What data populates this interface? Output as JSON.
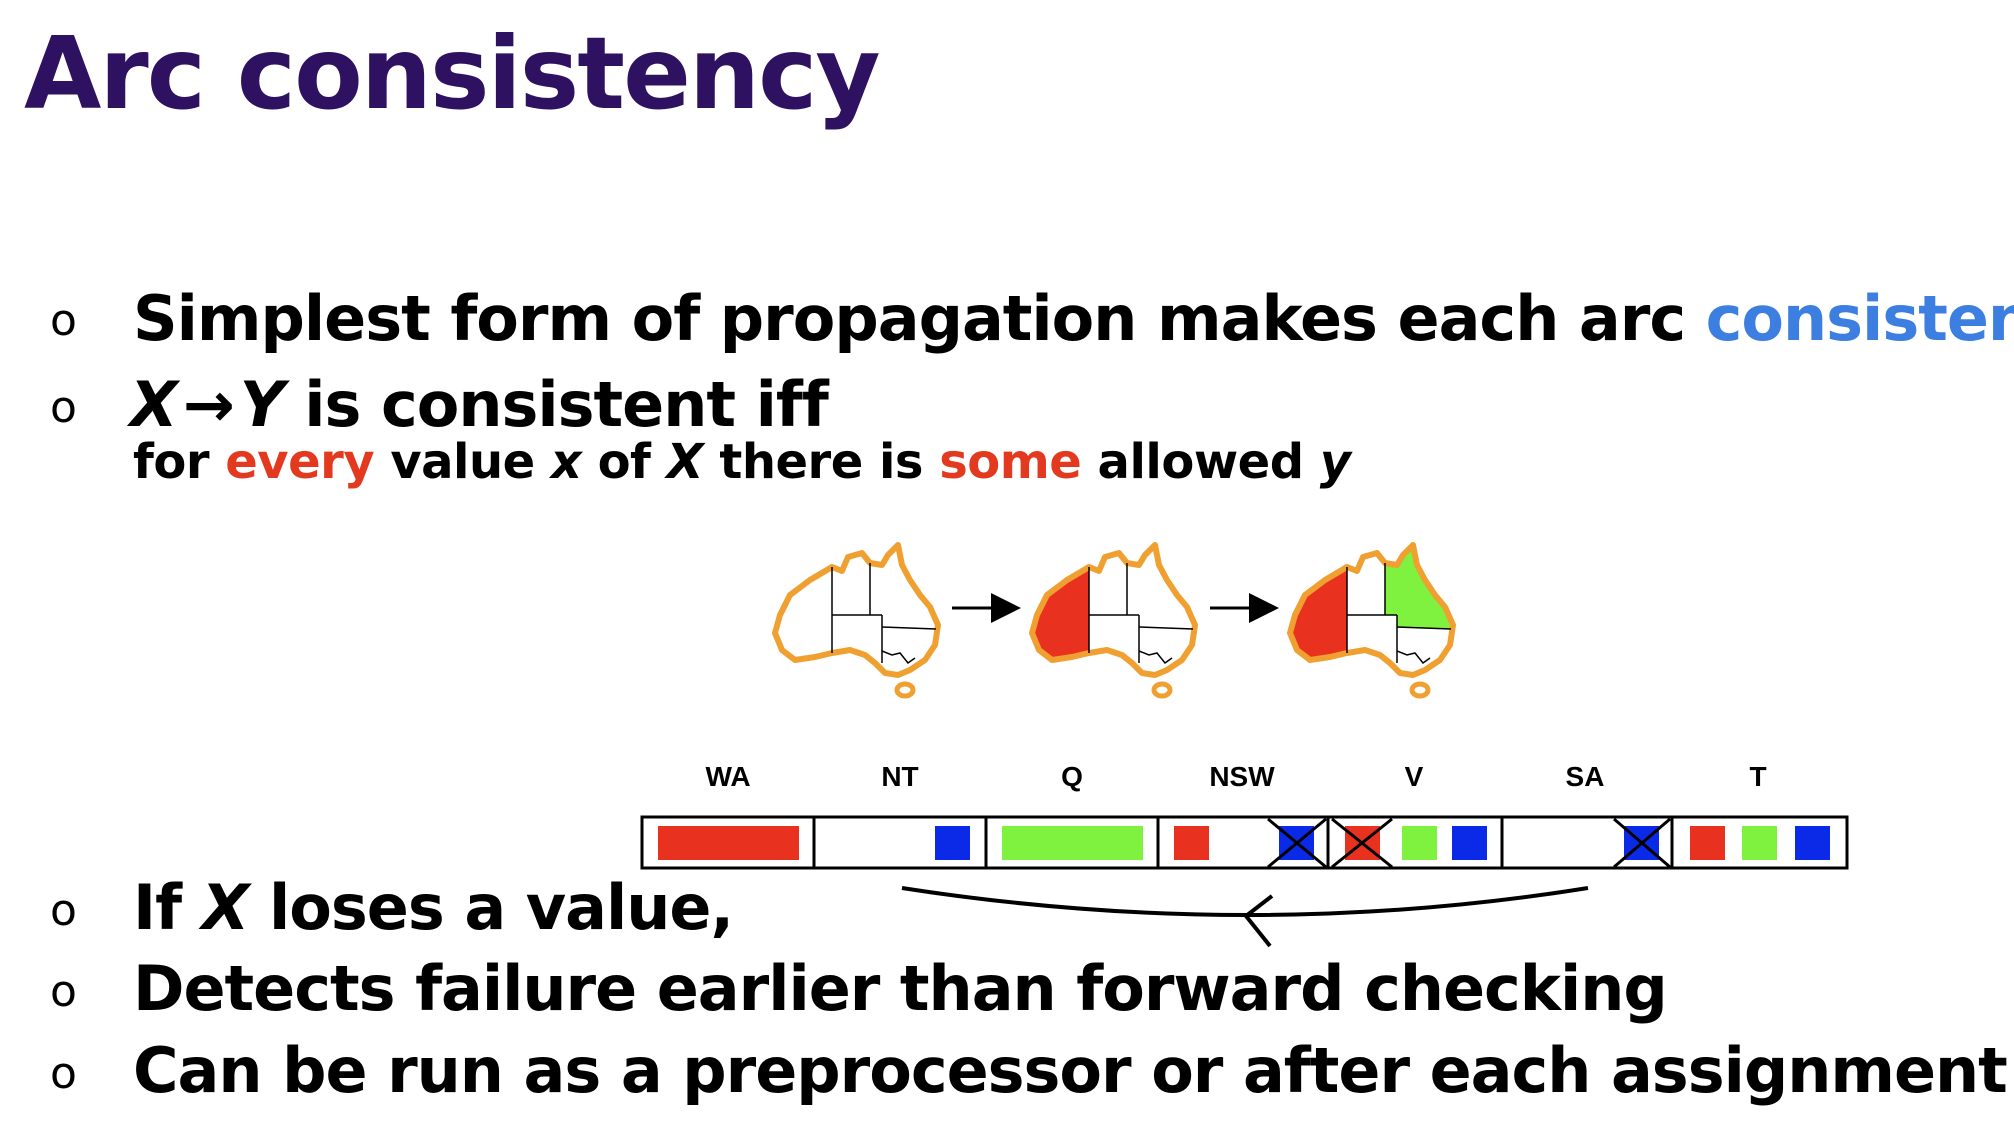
{
  "title": "Arc consistency",
  "bullet_marker": "o",
  "bullets": {
    "b1": {
      "text": "Simplest form of propagation makes each arc ",
      "highlight": "consistent"
    },
    "b2": {
      "x": "X",
      "arrow": "→",
      "y": "Y",
      "rest": " is consistent iff"
    },
    "b2_sub": {
      "p1": "for ",
      "every": "every",
      "p2": " value ",
      "x": "x",
      "p3": " of ",
      "X": "X",
      "p4": " there is ",
      "some": "some",
      "p5": " allowed ",
      "y": "y"
    },
    "b3": {
      "p1": "If ",
      "X": "X",
      "p2": " loses a value,"
    },
    "b4": "Detects failure earlier than forward checking",
    "b5": "Can be run as a preprocessor or after each assignment"
  },
  "domain_labels": [
    "WA",
    "NT",
    "Q",
    "NSW",
    "V",
    "SA",
    "T"
  ],
  "colors": {
    "title": "#2e1160",
    "highlight_blue": "#3d7fe0",
    "highlight_red": "#e33a1f",
    "domain_red": "#e8321f",
    "domain_green": "#7ef23f",
    "domain_blue": "#0a2ae8",
    "map_outline": "#f0a030"
  },
  "maps": [
    {
      "name": "map-empty",
      "wa": "none",
      "q": "none"
    },
    {
      "name": "map-wa-red",
      "wa": "red",
      "q": "none"
    },
    {
      "name": "map-wa-red-q-green",
      "wa": "red",
      "q": "green"
    }
  ]
}
